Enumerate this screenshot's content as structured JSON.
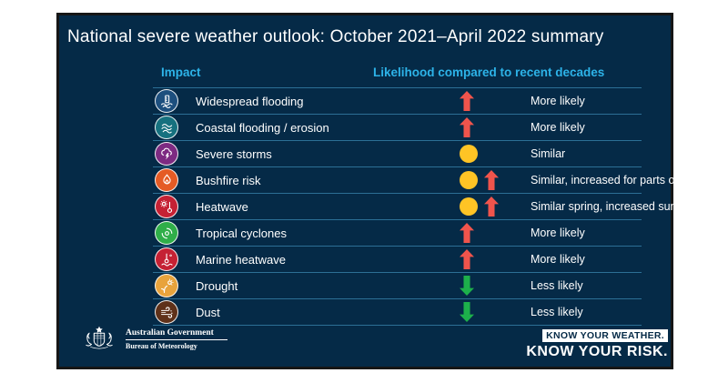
{
  "title": "National severe weather outlook: October 2021–April 2022 summary",
  "columns": {
    "impact": "Impact",
    "likelihood": "Likelihood compared to recent decades"
  },
  "colors": {
    "panel_bg": "#052a47",
    "header_cyan": "#2db3e8",
    "divider": "#2c6f95",
    "arrow_up_red": "#f0544c",
    "arrow_down_green": "#1db04b",
    "dot_yellow": "#ffc425"
  },
  "table": {
    "rows": [
      {
        "impact": "Widespread flooding",
        "icon": "widespread-flooding",
        "icon_color": "#1d4f7e",
        "indicators": [
          "up-arrow"
        ],
        "likelihood": "More likely"
      },
      {
        "impact": "Coastal flooding / erosion",
        "icon": "coastal-flooding",
        "icon_color": "#16717f",
        "indicators": [
          "dot-placeholder-none",
          "up-arrow"
        ],
        "likelihood": "More likely"
      },
      {
        "impact": "Severe storms",
        "icon": "severe-storms",
        "icon_color": "#7d2b82",
        "indicators": [
          "dot"
        ],
        "likelihood": "Similar"
      },
      {
        "impact": "Bushfire risk",
        "icon": "bushfire-risk",
        "icon_color": "#e55b25",
        "indicators": [
          "dot",
          "up-arrow"
        ],
        "likelihood": "Similar, increased for parts of Qld/NSW"
      },
      {
        "impact": "Heatwave",
        "icon": "heatwave",
        "icon_color": "#c52134",
        "indicators": [
          "dot",
          "up-arrow"
        ],
        "likelihood": "Similar spring, increased summer"
      },
      {
        "impact": "Tropical cyclones",
        "icon": "tropical-cyclones",
        "icon_color": "#2fae49",
        "indicators": [
          "up-arrow"
        ],
        "likelihood": "More likely"
      },
      {
        "impact": "Marine heatwave",
        "icon": "marine-heatwave",
        "icon_color": "#c52134",
        "indicators": [
          "up-arrow"
        ],
        "likelihood": "More likely"
      },
      {
        "impact": "Drought",
        "icon": "drought",
        "icon_color": "#e8a33c",
        "indicators": [
          "down-arrow"
        ],
        "likelihood": "Less likely"
      },
      {
        "impact": "Dust",
        "icon": "dust",
        "icon_color": "#5f3119",
        "indicators": [
          "down-arrow"
        ],
        "likelihood": "Less likely"
      }
    ]
  },
  "footer": {
    "gov_line1": "Australian Government",
    "gov_line2": "Bureau of Meteorology",
    "tagline_line1": "KNOW YOUR WEATHER.",
    "tagline_line2": "KNOW YOUR RISK."
  },
  "chart_data": {
    "type": "table",
    "title": "National severe weather outlook: October 2021–April 2022 summary",
    "columns": [
      "Impact",
      "Likelihood compared to recent decades"
    ],
    "rows": [
      {
        "impact": "Widespread flooding",
        "indicator": "up",
        "likelihood": "More likely"
      },
      {
        "impact": "Coastal flooding / erosion",
        "indicator": "up",
        "likelihood": "More likely"
      },
      {
        "impact": "Severe storms",
        "indicator": "similar",
        "likelihood": "Similar"
      },
      {
        "impact": "Bushfire risk",
        "indicator": "similar+up",
        "likelihood": "Similar, increased for parts of Qld/NSW"
      },
      {
        "impact": "Heatwave",
        "indicator": "similar+up",
        "likelihood": "Similar spring, increased summer"
      },
      {
        "impact": "Tropical cyclones",
        "indicator": "up",
        "likelihood": "More likely"
      },
      {
        "impact": "Marine heatwave",
        "indicator": "up",
        "likelihood": "More likely"
      },
      {
        "impact": "Drought",
        "indicator": "down",
        "likelihood": "Less likely"
      },
      {
        "impact": "Dust",
        "indicator": "down",
        "likelihood": "Less likely"
      }
    ],
    "legend": {
      "up": "red up arrow = more likely",
      "similar": "yellow dot = similar",
      "down": "green down arrow = less likely"
    }
  }
}
